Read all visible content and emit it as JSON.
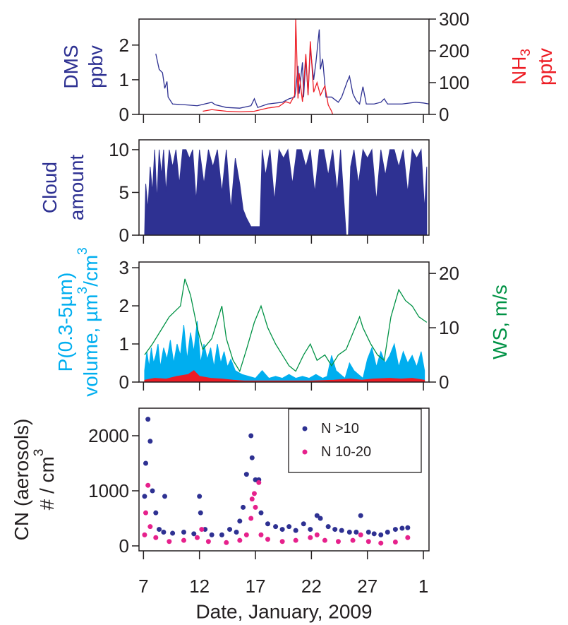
{
  "chart_data": [
    {
      "type": "line",
      "ylabel": [
        [
          "DMS"
        ],
        [
          "ppbv"
        ]
      ],
      "ylabel_color": "#2e3192",
      "y2label": [
        [
          "NH",
          {
            "sub": "3"
          }
        ],
        [
          "pptv"
        ]
      ],
      "y2label_color": "#ed1c24",
      "ylim": [
        0,
        2.75
      ],
      "yticks": [
        0,
        1,
        2
      ],
      "y2lim": [
        0,
        300
      ],
      "y2ticks": [
        0,
        100,
        200,
        300
      ],
      "series": [
        {
          "color": "#2e3192",
          "x": [
            8.1,
            8.4,
            8.7,
            8.9,
            9.1,
            9.2,
            9.6,
            10.6,
            11.8,
            13.1,
            13.4,
            14.4,
            15.6,
            16.6,
            16.9,
            17.2,
            18.1,
            19.4,
            20.0,
            20.5,
            20.6,
            20.8,
            20.9,
            21.2,
            21.3,
            21.5,
            21.7,
            21.9,
            22.2,
            22.4,
            22.7,
            22.8,
            23.0,
            23.3,
            23.8,
            24.4,
            24.7,
            25.2,
            25.4,
            25.7,
            26.0,
            26.3,
            26.6,
            26.9,
            27.6,
            28.2,
            28.5,
            28.8,
            30.1,
            31.3,
            32.0,
            32.5
          ],
          "values": [
            1.75,
            1.3,
            1.2,
            0.75,
            0.95,
            0.5,
            0.3,
            0.28,
            0.25,
            0.35,
            0.28,
            0.2,
            0.18,
            0.25,
            0.45,
            0.2,
            0.3,
            0.35,
            0.45,
            0.5,
            0.7,
            1.4,
            0.6,
            1.5,
            0.5,
            1.6,
            0.6,
            1.9,
            1.0,
            1.5,
            2.45,
            1.3,
            1.6,
            0.5,
            0.5,
            0.35,
            0.5,
            0.95,
            1.1,
            0.6,
            0.4,
            0.3,
            0.8,
            0.3,
            0.3,
            0.35,
            0.45,
            0.3,
            0.3,
            0.35,
            0.33,
            0.3
          ]
        },
        {
          "color": "#ed1c24",
          "axis": "y2",
          "x": [
            12.3,
            13.1,
            14.4,
            15.6,
            16.9,
            18.1,
            19.1,
            19.7,
            20.1,
            20.5,
            20.6,
            20.8,
            20.9,
            21.2,
            21.5,
            21.7,
            21.9,
            22.2,
            22.5,
            22.8,
            23.2,
            23.5,
            23.8,
            23.9
          ],
          "values": [
            10,
            15,
            10,
            8,
            10,
            20,
            25,
            40,
            35,
            60,
            300,
            50,
            130,
            40,
            190,
            60,
            230,
            70,
            100,
            60,
            90,
            30,
            10,
            0
          ]
        }
      ]
    },
    {
      "type": "area",
      "ylabel": [
        [
          "Cloud"
        ],
        [
          "amount"
        ]
      ],
      "ylabel_color": "#2e3192",
      "ylim": [
        0,
        11.15
      ],
      "yticks": [
        0,
        5,
        10
      ],
      "series": [
        {
          "color": "#2e3192",
          "x": [
            7.1,
            7.2,
            7.4,
            7.6,
            7.8,
            8.0,
            8.2,
            8.4,
            8.6,
            8.8,
            9.0,
            9.3,
            9.6,
            9.9,
            10.2,
            10.5,
            10.8,
            11.1,
            11.4,
            11.7,
            12.0,
            12.4,
            12.8,
            13.2,
            13.6,
            14.0,
            14.4,
            14.8,
            15.2,
            15.6,
            15.9,
            16.2,
            16.6,
            17.0,
            17.4,
            17.6,
            17.9,
            18.3,
            18.7,
            19.1,
            19.5,
            19.9,
            20.3,
            20.7,
            21.1,
            21.5,
            21.9,
            22.3,
            22.7,
            23.1,
            23.5,
            23.9,
            24.3,
            24.6,
            24.9,
            25.1,
            25.3,
            25.5,
            25.8,
            26.2,
            26.6,
            27.0,
            27.4,
            27.8,
            28.2,
            28.6,
            29.0,
            29.4,
            29.8,
            30.2,
            30.6,
            31.0,
            31.4,
            31.8,
            32.1,
            32.3
          ],
          "values": [
            0,
            6,
            3,
            8,
            5,
            10,
            4,
            10,
            7,
            10,
            5,
            10,
            8,
            10,
            6,
            10,
            10,
            9,
            10,
            4,
            10,
            6,
            10,
            8,
            10,
            5,
            10,
            3,
            9,
            6,
            3,
            2,
            1,
            1,
            1,
            10,
            7,
            10,
            4,
            10,
            9,
            10,
            6,
            10,
            10,
            8,
            10,
            5,
            10,
            10,
            7,
            10,
            5,
            10,
            4,
            0,
            0,
            8,
            10,
            6,
            10,
            9,
            10,
            4,
            10,
            7,
            10,
            10,
            8,
            10,
            5,
            10,
            9,
            10,
            3,
            8
          ]
        }
      ]
    },
    {
      "type": "area",
      "ylabel": [
        [
          "P(0.3-5µm)"
        ],
        [
          "volume, µm",
          {
            "sup": "3"
          },
          "/cm",
          {
            "sup": "3"
          }
        ]
      ],
      "ylabel_color": "#00aeef",
      "y2label": [
        [
          "WS, m/s"
        ]
      ],
      "y2label_color": "#009245",
      "ylim": [
        0,
        3.15
      ],
      "yticks": [
        0,
        1,
        2,
        3
      ],
      "y2lim": [
        0,
        22.1
      ],
      "y2ticks": [
        0,
        10,
        20
      ],
      "series": [
        {
          "color": "#00aeef",
          "x": [
            7.1,
            7.3,
            7.5,
            7.7,
            7.9,
            8.1,
            8.3,
            8.5,
            8.8,
            9.1,
            9.4,
            9.7,
            10.0,
            10.3,
            10.6,
            10.9,
            11.2,
            11.5,
            11.8,
            12.1,
            12.4,
            12.7,
            13.0,
            13.3,
            13.6,
            13.9,
            14.2,
            14.5,
            14.8,
            15.2,
            15.8,
            16.4,
            17.0,
            17.6,
            18.2,
            18.8,
            19.4,
            20.0,
            20.6,
            21.2,
            21.8,
            22.4,
            23.0,
            23.4,
            23.8,
            24.2,
            24.6,
            25.0,
            25.4,
            25.8,
            26.2,
            26.6,
            27.0,
            27.4,
            27.8,
            28.2,
            28.6,
            29.0,
            29.4,
            29.8,
            30.2,
            30.6,
            31.0,
            31.4,
            31.8,
            32.1
          ],
          "values": [
            0.3,
            0.8,
            0.4,
            0.9,
            0.5,
            0.7,
            1.0,
            0.4,
            0.9,
            0.6,
            1.1,
            0.5,
            1.0,
            0.7,
            1.5,
            0.6,
            1.3,
            0.8,
            1.6,
            0.5,
            1.0,
            0.6,
            0.9,
            0.4,
            1.0,
            0.5,
            0.8,
            0.4,
            0.6,
            0.3,
            0.2,
            0.15,
            0.1,
            0.3,
            0.1,
            0.15,
            0.1,
            0.2,
            0.1,
            0.15,
            0.1,
            0.2,
            0.1,
            0.15,
            0.7,
            0.3,
            0.2,
            0.1,
            0.5,
            0.3,
            0.2,
            0.1,
            0.6,
            0.9,
            0.4,
            0.8,
            0.5,
            0.7,
            1.0,
            0.4,
            0.8,
            0.5,
            0.7,
            0.4,
            0.8,
            0.3
          ]
        },
        {
          "color": "#ed1c24",
          "x": [
            7.1,
            8,
            9,
            10,
            11,
            11.5,
            12,
            13,
            14,
            15,
            16,
            18,
            20,
            22,
            24,
            25.5,
            26.5,
            27.5,
            29,
            30,
            31,
            32.1
          ],
          "values": [
            0.05,
            0.1,
            0.08,
            0.15,
            0.2,
            0.3,
            0.15,
            0.1,
            0.08,
            0.05,
            0.03,
            0.03,
            0.03,
            0.03,
            0.05,
            0.08,
            0.05,
            0.08,
            0.1,
            0.08,
            0.1,
            0.05
          ]
        },
        {
          "color": "#009245",
          "axis": "y2",
          "type": "line",
          "x": [
            7.1,
            7.8,
            8.4,
            9.3,
            10.3,
            10.7,
            11.2,
            11.8,
            12.3,
            13.1,
            14.0,
            14.4,
            15.0,
            15.6,
            16.2,
            16.9,
            17.5,
            18.1,
            18.8,
            19.4,
            20.0,
            20.6,
            21.3,
            21.9,
            22.5,
            23.2,
            23.8,
            24.4,
            25.1,
            25.7,
            26.3,
            26.6,
            27.3,
            27.9,
            28.5,
            29.1,
            29.8,
            30.4,
            31.0,
            31.6,
            32.3
          ],
          "values": [
            5,
            7,
            9,
            12,
            14,
            19,
            16,
            10,
            6,
            8,
            14,
            8,
            4,
            2,
            6,
            11,
            14,
            10,
            7,
            5,
            3,
            2,
            5,
            7,
            4,
            5,
            3,
            5,
            6,
            9,
            12,
            10,
            7,
            5,
            4,
            12,
            17,
            15,
            14,
            12,
            11
          ]
        }
      ]
    },
    {
      "type": "scatter",
      "ylabel": [
        [
          "CN (aerosols)"
        ],
        [
          "# / cm",
          {
            "sup": "3"
          }
        ]
      ],
      "ylabel_color": "#231f20",
      "ylim": [
        -90,
        2500
      ],
      "yticks": [
        0,
        1000,
        2000
      ],
      "xlim": [
        6.6,
        32.5
      ],
      "xticks": [
        7,
        12,
        17,
        22,
        27,
        {
          "value": 32,
          "label": "1"
        }
      ],
      "xlabel": "Date, January, 2009",
      "legend": "upper right",
      "series": [
        {
          "name": "N >10",
          "color": "#2e3192",
          "x": [
            7.1,
            7.2,
            7.4,
            7.6,
            7.8,
            8.1,
            8.4,
            8.8,
            8.9,
            9.6,
            10.6,
            11.5,
            12.0,
            12.1,
            12.5,
            13.1,
            14.0,
            14.7,
            15.3,
            15.6,
            15.9,
            16.2,
            16.6,
            16.7,
            17.0,
            17.3,
            17.5,
            18.1,
            18.8,
            19.4,
            20.0,
            20.6,
            21.3,
            21.9,
            22.5,
            22.8,
            23.5,
            24.1,
            24.7,
            25.4,
            26.0,
            26.4,
            27.1,
            27.6,
            28.2,
            28.8,
            29.5,
            30.1,
            30.6
          ],
          "values": [
            900,
            1500,
            2300,
            1900,
            1000,
            600,
            300,
            250,
            900,
            230,
            250,
            220,
            900,
            600,
            300,
            200,
            200,
            300,
            250,
            450,
            700,
            1300,
            2000,
            1600,
            1200,
            1200,
            600,
            400,
            350,
            300,
            350,
            280,
            400,
            300,
            550,
            500,
            350,
            300,
            280,
            250,
            250,
            550,
            250,
            220,
            200,
            250,
            300,
            320,
            330
          ]
        },
        {
          "name": "N 10-20",
          "color": "#e6218c",
          "x": [
            7.1,
            7.2,
            7.4,
            7.6,
            8.1,
            9.3,
            10.6,
            11.8,
            12.2,
            12.8,
            14.4,
            15.6,
            16.2,
            16.6,
            16.7,
            16.9,
            17.0,
            17.3,
            17.5,
            18.1,
            19.4,
            20.6,
            21.9,
            22.5,
            23.2,
            24.4,
            25.7,
            26.4,
            27.1,
            28.2,
            29.5,
            30.6
          ],
          "values": [
            200,
            600,
            1100,
            350,
            150,
            80,
            100,
            150,
            300,
            80,
            60,
            100,
            200,
            500,
            850,
            950,
            700,
            1150,
            200,
            120,
            80,
            100,
            150,
            200,
            100,
            80,
            100,
            200,
            80,
            50,
            70,
            150
          ]
        }
      ]
    }
  ]
}
